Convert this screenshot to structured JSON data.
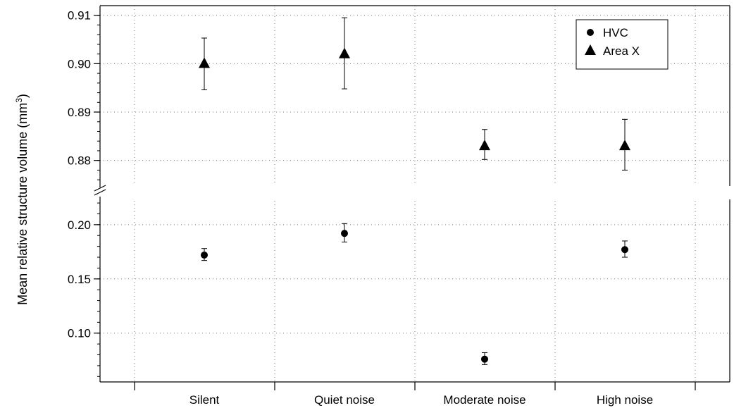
{
  "chart_data": {
    "type": "scatter",
    "error_bars": true,
    "broken_y_axis": true,
    "categories": [
      "Silent",
      "Quiet noise",
      "Moderate noise",
      "High noise"
    ],
    "ylabel": {
      "main": "Mean relative structure volume (mm",
      "sup": "3",
      "close": ")"
    },
    "xlabel": "",
    "title": "",
    "grid": true,
    "grid_style": "dotted",
    "legend_placement": "top-right",
    "upper_panel": {
      "ylim": [
        0.875,
        0.912
      ],
      "ticks": [
        "0.88",
        "0.89",
        "0.90",
        "0.91"
      ],
      "tick_values": [
        0.88,
        0.89,
        0.9,
        0.91
      ]
    },
    "lower_panel": {
      "ylim": [
        0.055,
        0.222
      ],
      "ticks": [
        "0.10",
        "0.15",
        "0.20"
      ],
      "tick_values": [
        0.1,
        0.15,
        0.2
      ]
    },
    "series": [
      {
        "name": "HVC",
        "marker": "circle",
        "panel": "lower",
        "values": [
          0.172,
          0.192,
          0.076,
          0.177
        ],
        "err_low": [
          0.167,
          0.184,
          0.071,
          0.17
        ],
        "err_high": [
          0.178,
          0.201,
          0.082,
          0.185
        ]
      },
      {
        "name": "Area X",
        "marker": "triangle",
        "panel": "upper",
        "values": [
          0.9,
          0.902,
          0.883,
          0.883
        ],
        "err_low": [
          0.8946,
          0.8948,
          0.8802,
          0.878
        ],
        "err_high": [
          0.9053,
          0.9095,
          0.8864,
          0.8885
        ]
      }
    ],
    "colors": {
      "marker": "#000000",
      "axis": "#000000",
      "grid": "#777777"
    }
  }
}
